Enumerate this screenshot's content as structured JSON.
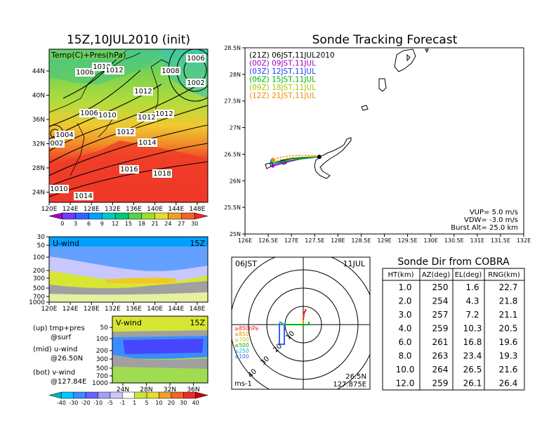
{
  "weather_map": {
    "title": "15Z,10JUL2010 (init)",
    "label": "Temp(C)+Pres(hPa)",
    "x_ticks": [
      "120E",
      "124E",
      "128E",
      "132E",
      "136E",
      "140E",
      "144E",
      "148E"
    ],
    "y_ticks": [
      "44N",
      "40N",
      "36N",
      "32N",
      "28N",
      "24N"
    ],
    "isobar_labels": [
      "1006",
      "1008",
      "1010",
      "1012",
      "1002",
      "1008",
      "1012",
      "1006",
      "1010",
      "1012",
      "1004",
      "1012",
      "1014",
      "002",
      "1016",
      "1018",
      "1010",
      "1014",
      "1012"
    ],
    "colorbar_ticks": [
      "0",
      "3",
      "6",
      "9",
      "12",
      "15",
      "18",
      "21",
      "24",
      "27",
      "30"
    ],
    "colorbar_colors": [
      "#a000c8",
      "#6e3cff",
      "#3264ff",
      "#00a0ff",
      "#00c8c8",
      "#00c878",
      "#50d250",
      "#a0dc28",
      "#e6dc32",
      "#f0a028",
      "#f06428",
      "#f02828"
    ]
  },
  "u_wind": {
    "label": "U-wind",
    "time": "15Z",
    "y_ticks": [
      "30",
      "50",
      "100",
      "200",
      "300",
      "500",
      "700",
      "1000"
    ],
    "x_ticks": [
      "120E",
      "124E",
      "128E",
      "132E",
      "136E",
      "140E",
      "144E",
      "148E"
    ]
  },
  "v_wind": {
    "label": "V-wind",
    "time": "15Z",
    "y_ticks": [
      "50",
      "100",
      "200",
      "300",
      "500",
      "700",
      "1000"
    ],
    "x_ticks": [
      "24N",
      "28N",
      "32N",
      "36N"
    ]
  },
  "panel_notes": {
    "up_line1": "(up) tmp+pres",
    "up_line2": "@surf",
    "mid_line1": "(mid) u-wind",
    "mid_line2": "@26.50N",
    "bot_line1": "(bot) v-wind",
    "bot_line2": "@127.84E"
  },
  "wind_colorbar": {
    "ticks": [
      "-40",
      "-30",
      "-20",
      "-10",
      "-5",
      "-1",
      "1",
      "5",
      "10",
      "20",
      "30",
      "40"
    ],
    "colors": [
      "#00b4b4",
      "#00c8ff",
      "#3c8cff",
      "#6464ff",
      "#a0a0ff",
      "#c8c8ff",
      "#ffffff",
      "#c8e632",
      "#e6dc32",
      "#f0a028",
      "#f06428",
      "#f02828",
      "#c80000"
    ]
  },
  "tracking": {
    "title": "Sonde Tracking Forecast",
    "x_ticks": [
      "126E",
      "126.5E",
      "127E",
      "127.5E",
      "128E",
      "128.5E",
      "129E",
      "129.5E",
      "130E",
      "130.5E",
      "131E",
      "131.5E",
      "132E"
    ],
    "y_ticks": [
      "28.5N",
      "28N",
      "27.5N",
      "27N",
      "26.5N",
      "26N",
      "25.5N",
      "25N"
    ],
    "legend": [
      {
        "label": "(21Z) 06JST,11JUL2010",
        "color": "#000000"
      },
      {
        "label": "(00Z) 09JST,11JUL",
        "color": "#a000c8"
      },
      {
        "label": "(03Z) 12JST,11JUL",
        "color": "#1e3cff"
      },
      {
        "label": "(06Z) 15JST,11JUL",
        "color": "#00b400"
      },
      {
        "label": "(09Z) 18JST,11JUL",
        "color": "#a0c800"
      },
      {
        "label": "(12Z) 21JST,11JUL",
        "color": "#f08c00"
      }
    ],
    "vup": "VUP=  5.0  m/s",
    "vdw": "VDW= -3.0  m/s",
    "burst": "Burst Alt=  25.0  km"
  },
  "polar": {
    "time_label": "06JST",
    "date_label": "11JUL",
    "range_labels": [
      "10",
      "20",
      "30",
      "40"
    ],
    "pressure_legend": [
      {
        "label": "≥850hPa",
        "color": "#e61e1e"
      },
      {
        "label": "≤850",
        "color": "#f08c00"
      },
      {
        "label": "≤700",
        "color": "#c8c800"
      },
      {
        "label": "≤500",
        "color": "#00b400"
      },
      {
        "label": "≤250",
        "color": "#00b4c8"
      },
      {
        "label": "≤100",
        "color": "#3264ff"
      }
    ],
    "unit": "ms-1",
    "lat": "26.5N",
    "lon": "127.875E"
  },
  "cobra_table": {
    "title": "Sonde Dir from COBRA",
    "headers": [
      "HT(km)",
      "AZ(deg)",
      "EL(deg)",
      "RNG(km)"
    ],
    "rows": [
      [
        "1.0",
        "250",
        "1.6",
        "22.7"
      ],
      [
        "2.0",
        "254",
        "4.3",
        "21.8"
      ],
      [
        "3.0",
        "257",
        "7.2",
        "21.1"
      ],
      [
        "4.0",
        "259",
        "10.3",
        "20.5"
      ],
      [
        "6.0",
        "261",
        "16.8",
        "19.6"
      ],
      [
        "8.0",
        "263",
        "23.4",
        "19.3"
      ],
      [
        "10.0",
        "264",
        "26.5",
        "21.6"
      ],
      [
        "12.0",
        "259",
        "26.1",
        "26.4"
      ]
    ]
  },
  "chart_data": [
    {
      "type": "table",
      "title": "Sonde Dir from COBRA",
      "columns": [
        "HT(km)",
        "AZ(deg)",
        "EL(deg)",
        "RNG(km)"
      ],
      "rows": [
        [
          1.0,
          250,
          1.6,
          22.7
        ],
        [
          2.0,
          254,
          4.3,
          21.8
        ],
        [
          3.0,
          257,
          7.2,
          21.1
        ],
        [
          4.0,
          259,
          10.3,
          20.5
        ],
        [
          6.0,
          261,
          16.8,
          19.6
        ],
        [
          8.0,
          263,
          23.4,
          19.3
        ],
        [
          10.0,
          264,
          26.5,
          21.6
        ],
        [
          12.0,
          259,
          26.1,
          26.4
        ]
      ]
    },
    {
      "type": "line",
      "title": "Sonde Tracking Forecast",
      "xlim": [
        126,
        132
      ],
      "ylim": [
        25,
        28.5
      ],
      "launch": {
        "x": 127.6,
        "y": 26.45
      },
      "series": [
        {
          "name": "(21Z) 06JST,11JUL2010",
          "color": "#000000",
          "points": [
            [
              127.6,
              26.45
            ],
            [
              127.3,
              26.44
            ],
            [
              127.0,
              26.42
            ],
            [
              126.8,
              26.38
            ],
            [
              126.65,
              26.34
            ],
            [
              126.6,
              26.38
            ]
          ]
        },
        {
          "name": "(00Z) 09JST,11JUL",
          "color": "#a000c8",
          "points": [
            [
              127.6,
              26.45
            ],
            [
              127.2,
              26.41
            ],
            [
              126.9,
              26.35
            ],
            [
              126.7,
              26.3
            ],
            [
              126.6,
              26.28
            ]
          ]
        },
        {
          "name": "(03Z) 12JST,11JUL",
          "color": "#1e3cff",
          "points": [
            [
              127.6,
              26.45
            ],
            [
              127.3,
              26.42
            ],
            [
              127.0,
              26.39
            ],
            [
              126.75,
              26.33
            ],
            [
              126.6,
              26.3
            ],
            [
              126.58,
              26.34
            ]
          ]
        },
        {
          "name": "(06Z) 15JST,11JUL",
          "color": "#00b400",
          "points": [
            [
              127.6,
              26.45
            ],
            [
              127.35,
              26.43
            ],
            [
              127.05,
              26.4
            ],
            [
              126.8,
              26.36
            ],
            [
              126.62,
              26.33
            ],
            [
              126.58,
              26.38
            ]
          ]
        },
        {
          "name": "(09Z) 18JST,11JUL",
          "color": "#a0c800",
          "points": [
            [
              127.6,
              26.46
            ],
            [
              127.35,
              26.45
            ],
            [
              127.0,
              26.43
            ],
            [
              126.78,
              26.4
            ],
            [
              126.62,
              26.37
            ]
          ]
        },
        {
          "name": "(12Z) 21JST,11JUL",
          "color": "#f08c00",
          "points": [
            [
              127.6,
              26.47
            ],
            [
              127.3,
              26.48
            ],
            [
              127.0,
              26.47
            ],
            [
              126.75,
              26.44
            ],
            [
              126.6,
              26.4
            ]
          ]
        }
      ]
    }
  ]
}
